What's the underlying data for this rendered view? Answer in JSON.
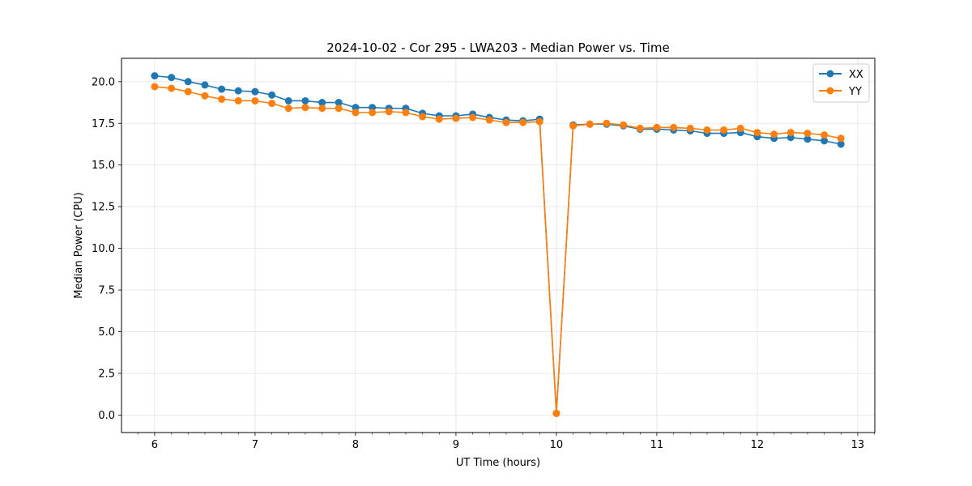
{
  "chart_data": {
    "type": "line",
    "title": "2024-10-02 - Cor 295 - LWA203 - Median Power vs. Time",
    "xlabel": "UT Time (hours)",
    "ylabel": "Median Power (CPU)",
    "xlim": [
      5.67,
      13.17
    ],
    "ylim": [
      -1.05,
      21.4
    ],
    "xticks": [
      6,
      7,
      8,
      9,
      10,
      11,
      12,
      13
    ],
    "xtick_labels": [
      "6",
      "7",
      "8",
      "9",
      "10",
      "11",
      "12",
      "13"
    ],
    "yticks": [
      0,
      2.5,
      5,
      7.5,
      10,
      12.5,
      15,
      17.5,
      20
    ],
    "ytick_labels": [
      "0.0",
      "2.5",
      "5.0",
      "7.5",
      "10.0",
      "12.5",
      "15.0",
      "17.5",
      "20.0"
    ],
    "grid": true,
    "legend_position": "top-right",
    "x": [
      6.0,
      6.167,
      6.333,
      6.5,
      6.667,
      6.833,
      7.0,
      7.167,
      7.333,
      7.5,
      7.667,
      7.833,
      8.0,
      8.167,
      8.333,
      8.5,
      8.667,
      8.833,
      9.0,
      9.167,
      9.333,
      9.5,
      9.667,
      9.833,
      10.0,
      10.167,
      10.333,
      10.5,
      10.667,
      10.833,
      11.0,
      11.167,
      11.333,
      11.5,
      11.667,
      11.833,
      12.0,
      12.167,
      12.333,
      12.5,
      12.667,
      12.833
    ],
    "series": [
      {
        "name": "XX",
        "color": "#1f77b4",
        "values": [
          20.35,
          20.25,
          20.0,
          19.8,
          19.55,
          19.45,
          19.4,
          19.2,
          18.85,
          18.85,
          18.75,
          18.75,
          18.45,
          18.45,
          18.4,
          18.4,
          18.1,
          17.95,
          17.95,
          18.05,
          17.85,
          17.7,
          17.65,
          17.75,
          0.1,
          17.4,
          17.45,
          17.45,
          17.35,
          17.15,
          17.15,
          17.1,
          17.05,
          16.9,
          16.9,
          16.95,
          16.7,
          16.6,
          16.65,
          16.55,
          16.45,
          16.25
        ]
      },
      {
        "name": "YY",
        "color": "#ff7f0e",
        "values": [
          19.7,
          19.6,
          19.4,
          19.15,
          18.95,
          18.85,
          18.85,
          18.7,
          18.4,
          18.45,
          18.4,
          18.4,
          18.15,
          18.15,
          18.2,
          18.15,
          17.9,
          17.75,
          17.8,
          17.85,
          17.7,
          17.55,
          17.55,
          17.6,
          0.1,
          17.35,
          17.45,
          17.5,
          17.4,
          17.2,
          17.25,
          17.25,
          17.2,
          17.1,
          17.1,
          17.2,
          16.95,
          16.85,
          16.95,
          16.9,
          16.8,
          16.6
        ]
      }
    ]
  }
}
